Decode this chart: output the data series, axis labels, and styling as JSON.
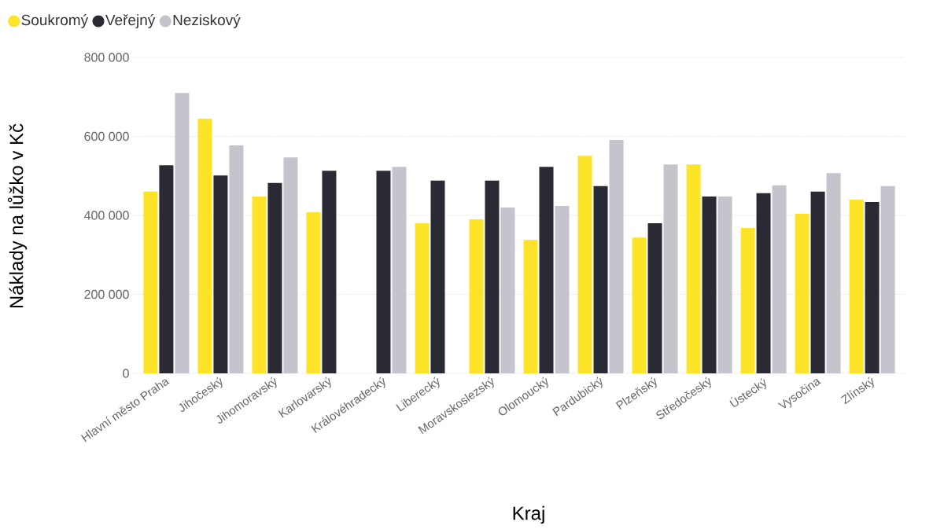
{
  "chart_data": {
    "type": "bar",
    "xlabel": "Kraj",
    "ylabel": "Náklady na lůžko v Kč",
    "categories": [
      "Hlavní město Praha",
      "Jihočeský",
      "Jihomoravský",
      "Karlovarský",
      "Královéhradecký",
      "Liberecký",
      "Moravskoslezský",
      "Olomoucký",
      "Pardubický",
      "Plzeňský",
      "Středočeský",
      "Ústecký",
      "Vysočina",
      "Zlínský"
    ],
    "series": [
      {
        "name": "Soukromý",
        "color": "#fde428",
        "values": [
          460000,
          645000,
          448000,
          408000,
          null,
          380000,
          390000,
          338000,
          551000,
          344000,
          529000,
          368000,
          404000,
          440000
        ]
      },
      {
        "name": "Veřejný",
        "color": "#2a2a35",
        "values": [
          527000,
          501000,
          482000,
          513000,
          513000,
          488000,
          488000,
          523000,
          474000,
          380000,
          448000,
          456000,
          460000,
          434000
        ]
      },
      {
        "name": "Neziskový",
        "color": "#c4c4cc",
        "values": [
          710000,
          577000,
          547000,
          null,
          523000,
          null,
          420000,
          424000,
          591000,
          529000,
          448000,
          476000,
          507000,
          474000
        ]
      }
    ],
    "ylim": [
      0,
      800000
    ],
    "yticks": [
      0,
      {
        "value": 200000,
        "label": "200 000"
      },
      {
        "value": 400000,
        "label": "400 000"
      },
      {
        "value": 600000,
        "label": "600 000"
      },
      {
        "value": 800000,
        "label": "800 000"
      }
    ],
    "grid": "y",
    "legend": "top left"
  }
}
